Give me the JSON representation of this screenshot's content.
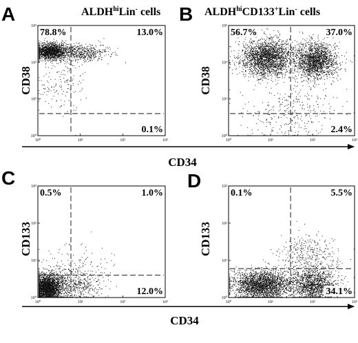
{
  "figure": {
    "x_axis_label_top": "CD34",
    "x_axis_label_bottom": "CD34"
  },
  "chart_data": [
    {
      "type": "scatter",
      "panel": "A",
      "title": {
        "main": "ALDH",
        "sup1": "hi",
        "mid": "Lin",
        "sup2": "-",
        "tail": " cells"
      },
      "xlabel": "CD34",
      "ylabel": "CD38",
      "xscale": "log",
      "yscale": "log",
      "xlim": [
        1,
        1000
      ],
      "ylim": [
        1,
        1000
      ],
      "x_ticks": [
        "10⁰",
        "10¹",
        "10²",
        "10³"
      ],
      "y_ticks": [
        "10⁰",
        "10¹",
        "10²",
        "10³"
      ],
      "gate_x": 6,
      "gate_y": 4,
      "quadrants": {
        "upper_left": "78.8%",
        "upper_right": "13.0%",
        "lower_left": "",
        "lower_right": "0.1%"
      },
      "populations": [
        {
          "cx": 2.0,
          "cy": 200,
          "sx": 0.22,
          "sy": 0.11,
          "n": 1600
        },
        {
          "cx": 12,
          "cy": 180,
          "sx": 0.3,
          "sy": 0.12,
          "n": 450
        },
        {
          "cx": 3,
          "cy": 25,
          "sx": 0.3,
          "sy": 0.45,
          "n": 160
        }
      ]
    },
    {
      "type": "scatter",
      "panel": "B",
      "title": {
        "main": "ALDH",
        "sup1": "hi",
        "mid": "CD133",
        "sup2": "+",
        "mid2": "Lin",
        "sup3": "-",
        "tail": " cells"
      },
      "xlabel": "CD34",
      "ylabel": "CD38",
      "xscale": "log",
      "yscale": "log",
      "xlim": [
        1,
        1000
      ],
      "ylim": [
        1,
        1000
      ],
      "x_ticks": [
        "10⁰",
        "10¹",
        "10²",
        "10³"
      ],
      "y_ticks": [
        "10⁰",
        "10¹",
        "10²",
        "10³"
      ],
      "gate_x": 30,
      "gate_y": 4,
      "quadrants": {
        "upper_left": "56.7%",
        "upper_right": "37.0%",
        "lower_left": "",
        "lower_right": "2.4%"
      },
      "populations": [
        {
          "cx": 8,
          "cy": 130,
          "sx": 0.32,
          "sy": 0.25,
          "n": 2200
        },
        {
          "cx": 120,
          "cy": 110,
          "sx": 0.25,
          "sy": 0.25,
          "n": 1700
        },
        {
          "cx": 30,
          "cy": 5,
          "sx": 0.55,
          "sy": 0.4,
          "n": 320
        }
      ]
    },
    {
      "type": "scatter",
      "panel": "C",
      "title": {},
      "xlabel": "CD34",
      "ylabel": "CD133",
      "xscale": "log",
      "yscale": "log",
      "xlim": [
        1,
        1000
      ],
      "ylim": [
        1,
        1000
      ],
      "x_ticks": [
        "10⁰",
        "10¹",
        "10²",
        "10³"
      ],
      "y_ticks": [
        "10⁰",
        "10¹",
        "10²",
        "10³"
      ],
      "gate_x": 6,
      "gate_y": 4,
      "quadrants": {
        "upper_left": "0.5%",
        "upper_right": "1.0%",
        "lower_left": "",
        "lower_right": "12.0%"
      },
      "populations": [
        {
          "cx": 1.6,
          "cy": 1.8,
          "sx": 0.18,
          "sy": 0.18,
          "n": 2400
        },
        {
          "cx": 6,
          "cy": 2.2,
          "sx": 0.35,
          "sy": 0.2,
          "n": 550
        },
        {
          "cx": 8,
          "cy": 6,
          "sx": 0.4,
          "sy": 0.35,
          "n": 140
        }
      ]
    },
    {
      "type": "scatter",
      "panel": "D",
      "title": {},
      "xlabel": "CD34",
      "ylabel": "CD133",
      "xscale": "log",
      "yscale": "log",
      "xlim": [
        1,
        1000
      ],
      "ylim": [
        1,
        1000
      ],
      "x_ticks": [
        "10⁰",
        "10¹",
        "10²",
        "10³"
      ],
      "y_ticks": [
        "10⁰",
        "10¹",
        "10²",
        "10³"
      ],
      "gate_x": 30,
      "gate_y": 6,
      "quadrants": {
        "upper_left": "0.1%",
        "upper_right": "5.5%",
        "lower_left": "",
        "lower_right": "34.1%"
      },
      "populations": [
        {
          "cx": 6,
          "cy": 2.2,
          "sx": 0.35,
          "sy": 0.2,
          "n": 2300
        },
        {
          "cx": 100,
          "cy": 2.3,
          "sx": 0.28,
          "sy": 0.2,
          "n": 1300
        },
        {
          "cx": 80,
          "cy": 14,
          "sx": 0.35,
          "sy": 0.3,
          "n": 360
        }
      ]
    }
  ]
}
